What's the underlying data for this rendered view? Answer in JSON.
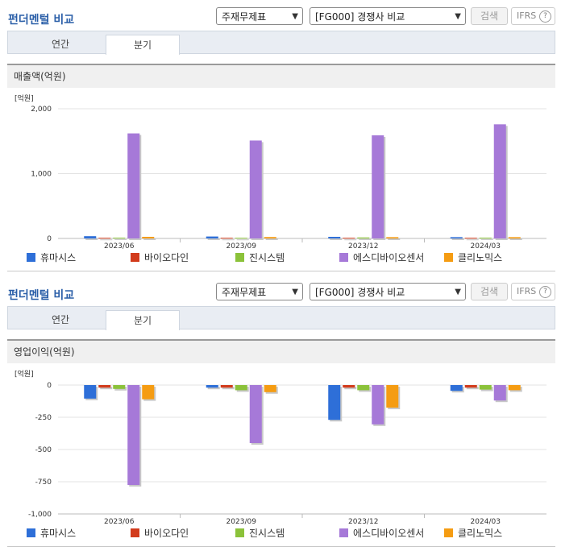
{
  "colors": {
    "휴마시스": "#2e6fd8",
    "바이오다인": "#d23b1c",
    "진시스템": "#8bc23a",
    "에스디바이오센서": "#a679d8",
    "클리노믹스": "#f59c12"
  },
  "panels": [
    {
      "title": "펀더멘털 비교",
      "filter1": "주재무제표",
      "filter2": "[FG000] 경쟁사 비교",
      "search_label": "검색",
      "ifrs_label": "IFRS",
      "help_label": "?",
      "tabs": [
        "연간",
        "분기"
      ],
      "active_tab": 1,
      "section_title": "매출액(억원)",
      "unit_label": "[억원]"
    },
    {
      "title": "펀더멘털 비교",
      "filter1": "주재무제표",
      "filter2": "[FG000] 경쟁사 비교",
      "search_label": "검색",
      "ifrs_label": "IFRS",
      "help_label": "?",
      "tabs": [
        "연간",
        "분기"
      ],
      "active_tab": 1,
      "section_title": "영업이익(억원)",
      "unit_label": "[억원]"
    }
  ],
  "chart_data": [
    {
      "type": "bar",
      "categories": [
        "2023/06",
        "2023/09",
        "2023/12",
        "2024/03"
      ],
      "ylim": [
        0,
        2000
      ],
      "yticks": [
        0,
        1000,
        2000
      ],
      "ytick_labels": [
        "0",
        "1,000",
        "2,000"
      ],
      "series": [
        {
          "name": "휴마시스",
          "values": [
            35,
            30,
            25,
            20
          ]
        },
        {
          "name": "바이오다인",
          "values": [
            10,
            10,
            10,
            10
          ]
        },
        {
          "name": "진시스템",
          "values": [
            12,
            10,
            15,
            12
          ]
        },
        {
          "name": "에스디바이오센서",
          "values": [
            1620,
            1510,
            1590,
            1760
          ]
        },
        {
          "name": "클리노믹스",
          "values": [
            25,
            22,
            20,
            20
          ]
        }
      ]
    },
    {
      "type": "bar",
      "categories": [
        "2023/06",
        "2023/09",
        "2023/12",
        "2024/03"
      ],
      "ylim": [
        -1000,
        0
      ],
      "yticks": [
        0,
        -250,
        -500,
        -750,
        -1000
      ],
      "ytick_labels": [
        "0",
        "-250",
        "-500",
        "-750",
        "-1,000"
      ],
      "series": [
        {
          "name": "휴마시스",
          "values": [
            -105,
            -20,
            -270,
            -45
          ]
        },
        {
          "name": "바이오다인",
          "values": [
            -20,
            -20,
            -20,
            -20
          ]
        },
        {
          "name": "진시스템",
          "values": [
            -30,
            -40,
            -40,
            -35
          ]
        },
        {
          "name": "에스디바이오센서",
          "values": [
            -775,
            -450,
            -305,
            -120
          ]
        },
        {
          "name": "클리노믹스",
          "values": [
            -110,
            -55,
            -175,
            -40
          ]
        }
      ]
    }
  ]
}
